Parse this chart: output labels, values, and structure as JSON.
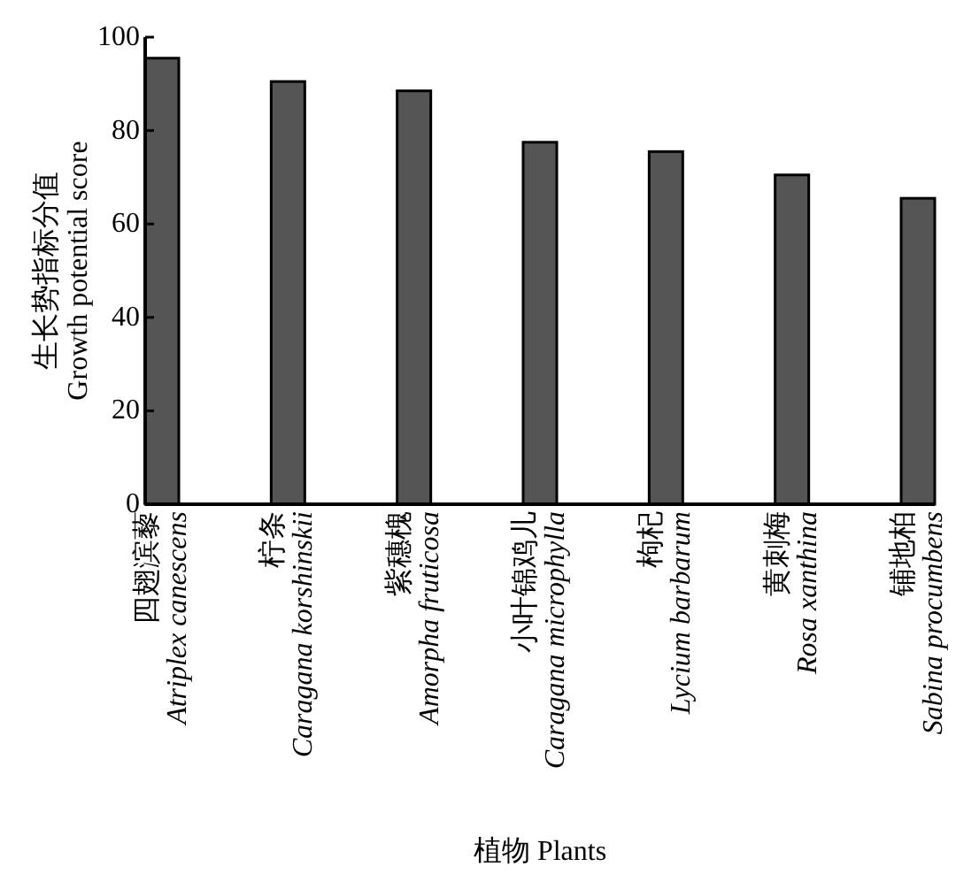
{
  "chart_data": {
    "type": "bar",
    "xlabel": "植物 Plants",
    "ylabel": "生长势指标分值\nGrowth potential score",
    "categories": [
      "四翅滨藜\nAtriplex canescens",
      "柠条\nCaragana korshinskii",
      "紫穗槐\nAmorpha fruticosa",
      "小叶锦鸡儿\nCaragana microphylla",
      "枸杞\nLycium barbarum",
      "黄刺梅\nRosa xanthina",
      "铺地柏\nSabina procumbens"
    ],
    "values": [
      95.5,
      90.5,
      88.5,
      77.5,
      75.5,
      70.5,
      65.5
    ],
    "color": "#555555",
    "ylim": [
      0,
      100
    ],
    "yticks": [
      0,
      20,
      40,
      60,
      80,
      100
    ],
    "grid": false
  }
}
